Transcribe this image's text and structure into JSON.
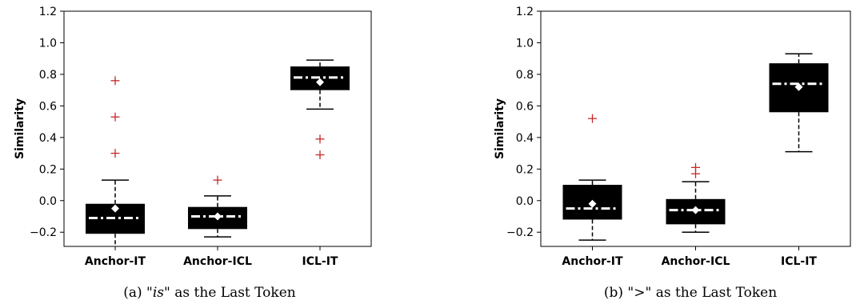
{
  "chart_data": [
    {
      "type": "box",
      "ylabel": "Similarity",
      "ylim": [
        -0.29,
        1.2
      ],
      "yticks": [
        "−0.2",
        "0.0",
        "0.2",
        "0.4",
        "0.6",
        "0.8",
        "1.0",
        "1.2"
      ],
      "ytick_values": [
        -0.2,
        0.0,
        0.2,
        0.4,
        0.6,
        0.8,
        1.0,
        1.2
      ],
      "categories": [
        "Anchor-IT",
        "Anchor-ICL",
        "ICL-IT"
      ],
      "caption_prefix": "(a) \"",
      "caption_italic": "is",
      "caption_suffix": "\" as the Last Token",
      "boxes": [
        {
          "name": "Anchor-IT",
          "whisker_low": -0.3,
          "q1": -0.21,
          "median": -0.11,
          "q3": -0.02,
          "whisker_high": 0.13,
          "mean": -0.05,
          "outliers": [
            0.3,
            0.53,
            0.76
          ]
        },
        {
          "name": "Anchor-ICL",
          "whisker_low": -0.23,
          "q1": -0.18,
          "median": -0.1,
          "q3": -0.04,
          "whisker_high": 0.03,
          "mean": -0.1,
          "outliers": [
            0.13
          ]
        },
        {
          "name": "ICL-IT",
          "whisker_low": 0.58,
          "q1": 0.7,
          "median": 0.78,
          "q3": 0.85,
          "whisker_high": 0.89,
          "mean": 0.75,
          "outliers": [
            0.29,
            0.39
          ]
        }
      ]
    },
    {
      "type": "box",
      "ylabel": "Similarity",
      "ylim": [
        -0.29,
        1.2
      ],
      "yticks": [
        "−0.2",
        "0.0",
        "0.2",
        "0.4",
        "0.6",
        "0.8",
        "1.0",
        "1.2"
      ],
      "ytick_values": [
        -0.2,
        0.0,
        0.2,
        0.4,
        0.6,
        0.8,
        1.0,
        1.2
      ],
      "categories": [
        "Anchor-IT",
        "Anchor-ICL",
        "ICL-IT"
      ],
      "caption_prefix": "(b) \"",
      "caption_italic": ">",
      "caption_suffix": "\" as the Last Token",
      "boxes": [
        {
          "name": "Anchor-IT",
          "whisker_low": -0.25,
          "q1": -0.12,
          "median": -0.05,
          "q3": 0.1,
          "whisker_high": 0.13,
          "mean": -0.02,
          "outliers": [
            0.52
          ]
        },
        {
          "name": "Anchor-ICL",
          "whisker_low": -0.2,
          "q1": -0.15,
          "median": -0.06,
          "q3": 0.01,
          "whisker_high": 0.12,
          "mean": -0.06,
          "outliers": [
            0.17,
            0.21
          ]
        },
        {
          "name": "ICL-IT",
          "whisker_low": 0.31,
          "q1": 0.56,
          "median": 0.74,
          "q3": 0.87,
          "whisker_high": 0.93,
          "mean": 0.72,
          "outliers": []
        }
      ]
    }
  ]
}
